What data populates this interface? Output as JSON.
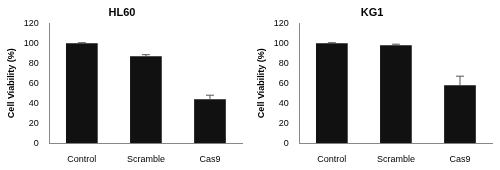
{
  "chart_data": [
    {
      "type": "bar",
      "title": "HL60",
      "y_label": "Cell Viability (%)",
      "categories": [
        "Control",
        "Scramble",
        "Cas9"
      ],
      "values": [
        100,
        87,
        44
      ],
      "errors": [
        0.5,
        1.5,
        4
      ],
      "color": "#111111",
      "ylim": [
        0,
        120
      ],
      "yticks": [
        0,
        20,
        40,
        60,
        80,
        100,
        120
      ],
      "grid": false
    },
    {
      "type": "bar",
      "title": "KG1",
      "y_label": "Cell Viability (%)",
      "categories": [
        "Control",
        "Scramble",
        "Cas9"
      ],
      "values": [
        100,
        98,
        58
      ],
      "errors": [
        0.5,
        1,
        9
      ],
      "color": "#111111",
      "ylim": [
        0,
        120
      ],
      "yticks": [
        0,
        20,
        40,
        60,
        80,
        100,
        120
      ],
      "grid": false
    }
  ]
}
